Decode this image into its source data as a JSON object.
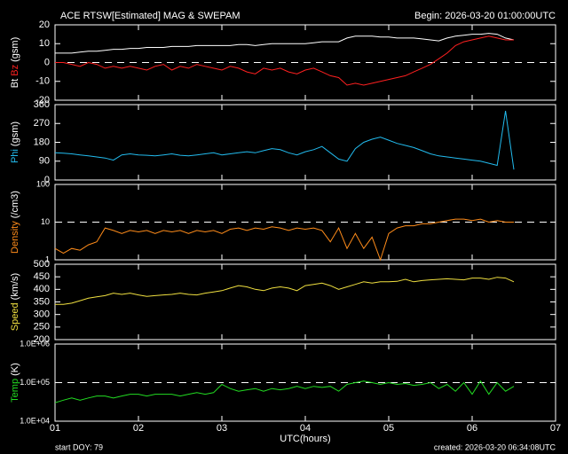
{
  "header": {
    "title": "ACE RTSW[Estimated] MAG & SWEPAM",
    "begin": "Begin: 2026-03-20 01:00:00UTC"
  },
  "footer": {
    "start": "start DOY:  79",
    "created": "created: 2026-03-20 06:34:08UTC"
  },
  "chart_data": [
    {
      "type": "line",
      "ylabel": "(gsm)",
      "xlim": [
        1,
        7
      ],
      "ylim": [
        -20,
        20
      ],
      "yticks": [
        20,
        10,
        0,
        -10,
        -20
      ],
      "reference_line": 0,
      "x": [
        1,
        1.1,
        1.2,
        1.3,
        1.4,
        1.5,
        1.6,
        1.7,
        1.8,
        1.9,
        2,
        2.1,
        2.2,
        2.3,
        2.4,
        2.5,
        2.6,
        2.7,
        2.8,
        2.9,
        3,
        3.1,
        3.2,
        3.3,
        3.4,
        3.5,
        3.6,
        3.7,
        3.8,
        3.9,
        4,
        4.1,
        4.2,
        4.3,
        4.4,
        4.5,
        4.6,
        4.7,
        4.8,
        4.9,
        5,
        5.1,
        5.2,
        5.3,
        5.4,
        5.5,
        5.6,
        5.7,
        5.8,
        5.9,
        6,
        6.1,
        6.2,
        6.3,
        6.4,
        6.5
      ],
      "series": [
        {
          "name": "Bt",
          "color": "#ffffff",
          "values": [
            5,
            5,
            5,
            5.5,
            6,
            6,
            6.5,
            7,
            7,
            7.5,
            7.5,
            8,
            8,
            8,
            8.5,
            8.5,
            8.5,
            9,
            9,
            9,
            9,
            9,
            9.5,
            9.5,
            9,
            9.5,
            10,
            10,
            10,
            10,
            10,
            10.5,
            11,
            11,
            11,
            13,
            14,
            14,
            14,
            13.5,
            13.5,
            13,
            13,
            13,
            12.5,
            12,
            11.5,
            13,
            14,
            14.5,
            15,
            15,
            15.5,
            15,
            13,
            12
          ]
        },
        {
          "name": "Bz",
          "color": "#ff2020",
          "values": [
            0,
            0,
            -1,
            -2,
            0,
            -1,
            -3,
            -2,
            -3,
            -2,
            -3,
            -4,
            -2,
            -1,
            -4,
            -2,
            -3,
            -1,
            -2,
            -3,
            -4,
            -2,
            -3,
            -5,
            -6,
            -3,
            -4,
            -3,
            -5,
            -6,
            -4,
            -3,
            -5,
            -7,
            -8,
            -12,
            -11,
            -12,
            -11,
            -10,
            -9,
            -8,
            -7,
            -5,
            -3,
            -1,
            2,
            5,
            9,
            11,
            12,
            13,
            14,
            13,
            12,
            12
          ]
        }
      ]
    },
    {
      "type": "line",
      "ylabel": "(gsm)",
      "xlim": [
        1,
        7
      ],
      "ylim": [
        0,
        360
      ],
      "yticks": [
        0,
        90,
        180,
        270,
        360
      ],
      "x": [
        1,
        1.1,
        1.2,
        1.3,
        1.4,
        1.5,
        1.6,
        1.7,
        1.8,
        1.9,
        2,
        2.1,
        2.2,
        2.3,
        2.4,
        2.5,
        2.6,
        2.7,
        2.8,
        2.9,
        3,
        3.1,
        3.2,
        3.3,
        3.4,
        3.5,
        3.6,
        3.7,
        3.8,
        3.9,
        4,
        4.1,
        4.2,
        4.3,
        4.4,
        4.5,
        4.6,
        4.7,
        4.8,
        4.9,
        5,
        5.1,
        5.2,
        5.3,
        5.4,
        5.5,
        5.6,
        5.7,
        5.8,
        5.9,
        6,
        6.1,
        6.2,
        6.3,
        6.4,
        6.5
      ],
      "series": [
        {
          "name": "Phi",
          "color": "#22bbee",
          "values": [
            130,
            128,
            125,
            120,
            115,
            110,
            105,
            95,
            120,
            125,
            120,
            118,
            115,
            120,
            125,
            118,
            115,
            120,
            125,
            130,
            120,
            125,
            130,
            135,
            130,
            140,
            150,
            145,
            130,
            120,
            135,
            145,
            160,
            130,
            100,
            90,
            150,
            180,
            195,
            205,
            190,
            175,
            165,
            155,
            140,
            125,
            115,
            110,
            105,
            100,
            95,
            90,
            80,
            70,
            330,
            50
          ]
        }
      ]
    },
    {
      "type": "line",
      "ylabel": "(/cm3)",
      "log": true,
      "xlim": [
        1,
        7
      ],
      "ylim": [
        1,
        100
      ],
      "yticks": [
        1,
        10,
        100
      ],
      "reference_line": 10,
      "x": [
        1,
        1.1,
        1.2,
        1.3,
        1.4,
        1.5,
        1.6,
        1.7,
        1.8,
        1.9,
        2,
        2.1,
        2.2,
        2.3,
        2.4,
        2.5,
        2.6,
        2.7,
        2.8,
        2.9,
        3,
        3.1,
        3.2,
        3.3,
        3.4,
        3.5,
        3.6,
        3.7,
        3.8,
        3.9,
        4,
        4.1,
        4.2,
        4.3,
        4.4,
        4.5,
        4.6,
        4.7,
        4.8,
        4.9,
        5,
        5.1,
        5.2,
        5.3,
        5.4,
        5.5,
        5.6,
        5.7,
        5.8,
        5.9,
        6,
        6.1,
        6.2,
        6.3,
        6.4,
        6.5
      ],
      "series": [
        {
          "name": "Density",
          "color": "#ff8c1a",
          "values": [
            2,
            1.5,
            2,
            1.8,
            2.5,
            3,
            7,
            6,
            5,
            6,
            5.5,
            6,
            5,
            6,
            5.5,
            6,
            5,
            6,
            5.5,
            6,
            5,
            6.5,
            7,
            6,
            7,
            6.5,
            7.5,
            7,
            6,
            7,
            6.5,
            7,
            6,
            3,
            7,
            2,
            5,
            2,
            4,
            1,
            5,
            7,
            8,
            8,
            9,
            9,
            10,
            11,
            12,
            12,
            11,
            12,
            10,
            11,
            10,
            10
          ]
        }
      ]
    },
    {
      "type": "line",
      "ylabel": "(km/s)",
      "xlim": [
        1,
        7
      ],
      "ylim": [
        200,
        500
      ],
      "yticks": [
        200,
        250,
        300,
        350,
        400,
        450,
        500
      ],
      "x": [
        1,
        1.1,
        1.2,
        1.3,
        1.4,
        1.5,
        1.6,
        1.7,
        1.8,
        1.9,
        2,
        2.1,
        2.2,
        2.3,
        2.4,
        2.5,
        2.6,
        2.7,
        2.8,
        2.9,
        3,
        3.1,
        3.2,
        3.3,
        3.4,
        3.5,
        3.6,
        3.7,
        3.8,
        3.9,
        4,
        4.1,
        4.2,
        4.3,
        4.4,
        4.5,
        4.6,
        4.7,
        4.8,
        4.9,
        5,
        5.1,
        5.2,
        5.3,
        5.4,
        5.5,
        5.6,
        5.7,
        5.8,
        5.9,
        6,
        6.1,
        6.2,
        6.3,
        6.4,
        6.5
      ],
      "series": [
        {
          "name": "Speed",
          "color": "#f0e040",
          "values": [
            340,
            340,
            345,
            355,
            365,
            370,
            375,
            385,
            380,
            385,
            378,
            372,
            375,
            378,
            380,
            385,
            380,
            378,
            385,
            390,
            395,
            405,
            415,
            410,
            400,
            395,
            405,
            410,
            405,
            395,
            415,
            420,
            425,
            415,
            400,
            410,
            420,
            430,
            425,
            430,
            430,
            432,
            440,
            430,
            435,
            438,
            440,
            442,
            440,
            438,
            445,
            445,
            440,
            448,
            445,
            430
          ]
        }
      ]
    },
    {
      "type": "line",
      "ylabel": "(K)",
      "log": true,
      "xlim": [
        1,
        7
      ],
      "ylim": [
        10000,
        1000000
      ],
      "yticks": [
        {
          "value": 10000,
          "label": "1.0E+04"
        },
        {
          "value": 100000,
          "label": "1.0E+05"
        },
        {
          "value": 1000000,
          "label": "1.0E+06"
        }
      ],
      "reference_line": 100000,
      "xlabel": "UTC(hours)",
      "xticks": [
        {
          "value": 1,
          "label": "01"
        },
        {
          "value": 2,
          "label": "02"
        },
        {
          "value": 3,
          "label": "03"
        },
        {
          "value": 4,
          "label": "04"
        },
        {
          "value": 5,
          "label": "05"
        },
        {
          "value": 6,
          "label": "06"
        },
        {
          "value": 7,
          "label": "07"
        }
      ],
      "x": [
        1,
        1.1,
        1.2,
        1.3,
        1.4,
        1.5,
        1.6,
        1.7,
        1.8,
        1.9,
        2,
        2.1,
        2.2,
        2.3,
        2.4,
        2.5,
        2.6,
        2.7,
        2.8,
        2.9,
        3,
        3.1,
        3.2,
        3.3,
        3.4,
        3.5,
        3.6,
        3.7,
        3.8,
        3.9,
        4,
        4.1,
        4.2,
        4.3,
        4.4,
        4.5,
        4.6,
        4.7,
        4.8,
        4.9,
        5,
        5.1,
        5.2,
        5.3,
        5.4,
        5.5,
        5.6,
        5.7,
        5.8,
        5.9,
        6,
        6.1,
        6.2,
        6.3,
        6.4,
        6.5
      ],
      "series": [
        {
          "name": "Temp",
          "color": "#22dd22",
          "values": [
            30000,
            35000,
            40000,
            35000,
            40000,
            45000,
            45000,
            40000,
            45000,
            50000,
            50000,
            45000,
            50000,
            50000,
            50000,
            45000,
            50000,
            55000,
            50000,
            55000,
            90000,
            70000,
            60000,
            65000,
            70000,
            60000,
            70000,
            65000,
            70000,
            80000,
            70000,
            80000,
            75000,
            80000,
            60000,
            90000,
            100000,
            110000,
            100000,
            90000,
            100000,
            90000,
            95000,
            85000,
            90000,
            100000,
            70000,
            90000,
            60000,
            100000,
            50000,
            110000,
            50000,
            100000,
            60000,
            80000
          ]
        }
      ]
    }
  ]
}
